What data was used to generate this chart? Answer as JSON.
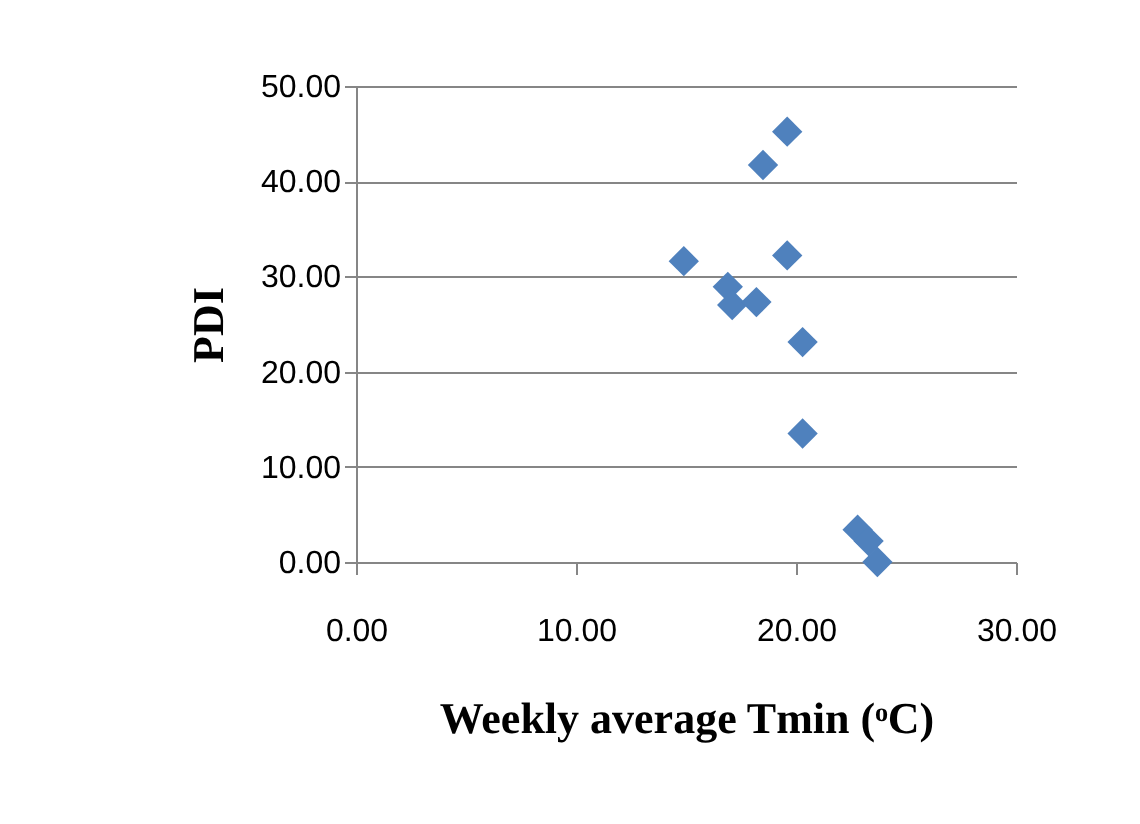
{
  "chart_data": {
    "type": "scatter",
    "xlabel": "Weekly average Tmin (ᵒC)",
    "ylabel": "PDI",
    "x": [
      19.6,
      18.5,
      19.6,
      14.9,
      16.9,
      17.1,
      18.2,
      20.3,
      20.3,
      22.8,
      23.3,
      23.7
    ],
    "series": [
      {
        "color": "#4f81bd",
        "values": [
          45.2,
          41.7,
          32.2,
          31.6,
          28.9,
          27.0,
          27.3,
          23.1,
          13.5,
          3.4,
          2.2,
          0.0
        ]
      }
    ],
    "xlim": [
      0,
      30
    ],
    "xticks": [
      {
        "value": 0,
        "label": "0.00"
      },
      {
        "value": 10,
        "label": "10.00"
      },
      {
        "value": 20,
        "label": "20.00"
      },
      {
        "value": 30,
        "label": "30.00"
      }
    ],
    "ylim": [
      0,
      50
    ],
    "yticks": [
      {
        "value": 0,
        "label": "0.00"
      },
      {
        "value": 10,
        "label": "10.00"
      },
      {
        "value": 20,
        "label": "20.00"
      },
      {
        "value": 30,
        "label": "30.00"
      },
      {
        "value": 40,
        "label": "40.00"
      },
      {
        "value": 50,
        "label": "50.00"
      }
    ],
    "grid": "y",
    "marker": "diamond"
  }
}
